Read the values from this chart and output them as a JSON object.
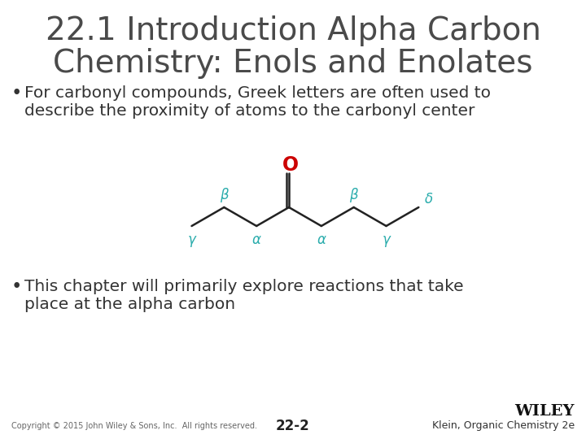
{
  "title_line1": "22.1 Introduction Alpha Carbon",
  "title_line2": "Chemistry: Enols and Enolates",
  "title_color": "#4a4a4a",
  "title_fontsize": 28,
  "bullet1_line1": "For carbonyl compounds, Greek letters are often used to",
  "bullet1_line2": "describe the proximity of atoms to the carbonyl center",
  "bullet2_line1": "This chapter will primarily explore reactions that take",
  "bullet2_line2": "place at the alpha carbon",
  "bullet_fontsize": 14.5,
  "bullet_color": "#333333",
  "bullet_symbol_color": "#333333",
  "greek_color": "#2aacac",
  "oxygen_color": "#cc0000",
  "bond_color": "#222222",
  "footer_left": "Copyright © 2015 John Wiley & Sons, Inc.  All rights reserved.",
  "footer_center": "22-2",
  "footer_right_bold": "WILEY",
  "footer_right_normal": "Klein, Organic Chemistry 2e",
  "background_color": "#ffffff"
}
